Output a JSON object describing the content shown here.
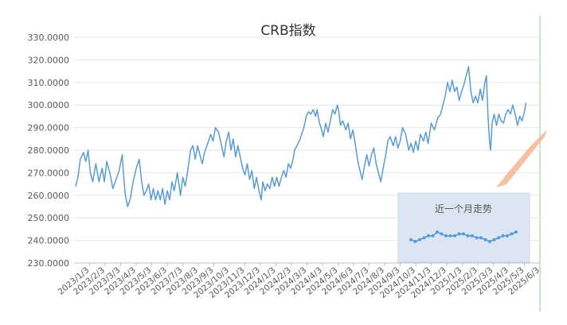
{
  "chart_data": [
    {
      "type": "line",
      "title": "CRB指数",
      "xlabel": "",
      "ylabel": "",
      "ylim": [
        230,
        330
      ],
      "y_ticks": [
        "330.0000",
        "320.0000",
        "310.0000",
        "300.0000",
        "290.0000",
        "280.0000",
        "270.0000",
        "260.0000",
        "250.0000",
        "240.0000",
        "230.0000"
      ],
      "x_ticks": [
        "2023/1/3",
        "2023/2/3",
        "2023/3/3",
        "2023/4/3",
        "2023/5/3",
        "2023/6/3",
        "2023/7/3",
        "2023/8/3",
        "2023/9/3",
        "2023/10/3",
        "2023/11/3",
        "2023/12/3",
        "2024/1/3",
        "2024/2/3",
        "2024/3/3",
        "2024/4/3",
        "2024/5/3",
        "2024/6/3",
        "2024/7/3",
        "2024/8/3",
        "2024/9/3",
        "2024/10/3",
        "2024/11/3",
        "2024/12/3",
        "2025/1/3",
        "2025/2/3",
        "2025/3/3",
        "2025/4/3",
        "2025/5/3",
        "2025/6/3"
      ],
      "grid": true,
      "line_color": "#5b9bd5",
      "series": [
        {
          "values": [
            [
              0,
              264
            ],
            [
              0.15,
              268
            ],
            [
              0.3,
              276
            ],
            [
              0.5,
              279
            ],
            [
              0.65,
              275
            ],
            [
              0.8,
              280
            ],
            [
              0.95,
              270
            ],
            [
              1.1,
              266
            ],
            [
              1.3,
              274
            ],
            [
              1.5,
              266
            ],
            [
              1.7,
              272
            ],
            [
              1.85,
              266
            ],
            [
              2.0,
              275
            ],
            [
              2.2,
              270
            ],
            [
              2.4,
              263
            ],
            [
              2.6,
              267
            ],
            [
              2.8,
              271
            ],
            [
              3.0,
              278
            ],
            [
              3.1,
              268
            ],
            [
              3.2,
              260
            ],
            [
              3.35,
              255
            ],
            [
              3.5,
              258
            ],
            [
              3.7,
              266
            ],
            [
              3.9,
              272
            ],
            [
              4.1,
              276
            ],
            [
              4.25,
              266
            ],
            [
              4.4,
              260
            ],
            [
              4.55,
              262
            ],
            [
              4.7,
              265
            ],
            [
              4.85,
              258
            ],
            [
              5.0,
              263
            ],
            [
              5.15,
              258
            ],
            [
              5.3,
              262
            ],
            [
              5.45,
              258
            ],
            [
              5.6,
              263
            ],
            [
              5.75,
              256
            ],
            [
              5.9,
              262
            ],
            [
              6.05,
              258
            ],
            [
              6.2,
              266
            ],
            [
              6.35,
              262
            ],
            [
              6.55,
              270
            ],
            [
              6.75,
              260
            ],
            [
              6.9,
              268
            ],
            [
              7.05,
              264
            ],
            [
              7.2,
              270
            ],
            [
              7.4,
              280
            ],
            [
              7.55,
              282
            ],
            [
              7.7,
              276
            ],
            [
              7.85,
              282
            ],
            [
              8.0,
              278
            ],
            [
              8.15,
              274
            ],
            [
              8.3,
              279
            ],
            [
              8.5,
              283
            ],
            [
              8.7,
              287
            ],
            [
              8.85,
              284
            ],
            [
              9.0,
              290
            ],
            [
              9.2,
              288
            ],
            [
              9.4,
              282
            ],
            [
              9.55,
              277
            ],
            [
              9.7,
              284
            ],
            [
              9.85,
              288
            ],
            [
              10.0,
              280
            ],
            [
              10.15,
              285
            ],
            [
              10.3,
              277
            ],
            [
              10.45,
              282
            ],
            [
              10.6,
              277
            ],
            [
              10.75,
              272
            ],
            [
              10.9,
              269
            ],
            [
              11.05,
              274
            ],
            [
              11.2,
              267
            ],
            [
              11.35,
              271
            ],
            [
              11.5,
              263
            ],
            [
              11.65,
              268
            ],
            [
              11.8,
              262
            ],
            [
              11.95,
              258
            ],
            [
              12.05,
              266
            ],
            [
              12.2,
              262
            ],
            [
              12.35,
              265
            ],
            [
              12.5,
              263
            ],
            [
              12.65,
              268
            ],
            [
              12.8,
              264
            ],
            [
              12.95,
              268
            ],
            [
              13.1,
              264
            ],
            [
              13.25,
              268
            ],
            [
              13.4,
              271
            ],
            [
              13.55,
              268
            ],
            [
              13.7,
              274
            ],
            [
              13.85,
              272
            ],
            [
              14.0,
              276
            ],
            [
              14.1,
              280
            ],
            [
              14.25,
              282
            ],
            [
              14.4,
              284
            ],
            [
              14.55,
              287
            ],
            [
              14.7,
              290
            ],
            [
              14.85,
              295
            ],
            [
              15.0,
              297
            ],
            [
              15.15,
              296
            ],
            [
              15.3,
              298
            ],
            [
              15.45,
              295
            ],
            [
              15.55,
              298
            ],
            [
              15.7,
              292
            ],
            [
              15.8,
              290
            ],
            [
              15.95,
              286
            ],
            [
              16.1,
              292
            ],
            [
              16.25,
              288
            ],
            [
              16.4,
              293
            ],
            [
              16.55,
              298
            ],
            [
              16.7,
              296
            ],
            [
              16.85,
              300
            ],
            [
              16.95,
              297
            ],
            [
              17.05,
              291
            ],
            [
              17.2,
              293
            ],
            [
              17.4,
              289
            ],
            [
              17.55,
              292
            ],
            [
              17.7,
              285
            ],
            [
              17.85,
              289
            ],
            [
              18.0,
              283
            ],
            [
              18.15,
              276
            ],
            [
              18.3,
              271
            ],
            [
              18.45,
              267
            ],
            [
              18.6,
              273
            ],
            [
              18.75,
              278
            ],
            [
              18.9,
              273
            ],
            [
              19.05,
              278
            ],
            [
              19.2,
              281
            ],
            [
              19.35,
              274
            ],
            [
              19.5,
              270
            ],
            [
              19.65,
              266
            ],
            [
              19.8,
              272
            ],
            [
              19.95,
              277
            ],
            [
              20.1,
              284
            ],
            [
              20.25,
              286
            ],
            [
              20.45,
              282
            ],
            [
              20.6,
              286
            ],
            [
              20.75,
              281
            ],
            [
              20.9,
              284
            ],
            [
              21.05,
              290
            ],
            [
              21.25,
              287
            ],
            [
              21.45,
              280
            ],
            [
              21.6,
              283
            ],
            [
              21.75,
              279
            ],
            [
              21.9,
              284
            ],
            [
              22.05,
              280
            ],
            [
              22.2,
              287
            ],
            [
              22.4,
              284
            ],
            [
              22.55,
              288
            ],
            [
              22.7,
              283
            ],
            [
              22.9,
              292
            ],
            [
              23.1,
              289
            ],
            [
              23.3,
              294
            ],
            [
              23.5,
              296
            ],
            [
              23.65,
              300
            ],
            [
              23.8,
              304
            ],
            [
              23.95,
              310
            ],
            [
              24.1,
              306
            ],
            [
              24.25,
              311
            ],
            [
              24.4,
              306
            ],
            [
              24.55,
              308
            ],
            [
              24.7,
              302
            ],
            [
              24.85,
              306
            ],
            [
              25.0,
              309
            ],
            [
              25.15,
              313
            ],
            [
              25.3,
              317
            ],
            [
              25.45,
              306
            ],
            [
              25.6,
              301
            ],
            [
              25.75,
              304
            ],
            [
              25.9,
              301
            ],
            [
              26.05,
              307
            ],
            [
              26.2,
              302
            ],
            [
              26.35,
              310
            ],
            [
              26.45,
              313
            ],
            [
              26.55,
              296
            ],
            [
              26.65,
              284
            ],
            [
              26.72,
              280
            ],
            [
              26.82,
              292
            ],
            [
              26.95,
              296
            ],
            [
              27.1,
              291
            ],
            [
              27.25,
              296
            ],
            [
              27.4,
              293
            ],
            [
              27.55,
              292
            ],
            [
              27.7,
              296
            ],
            [
              27.85,
              298
            ],
            [
              28.0,
              296
            ],
            [
              28.15,
              300
            ],
            [
              28.3,
              296
            ],
            [
              28.45,
              291
            ],
            [
              28.6,
              295
            ],
            [
              28.75,
              293
            ],
            [
              28.9,
              297
            ],
            [
              29.0,
              301
            ]
          ]
        }
      ]
    },
    {
      "type": "line",
      "title": "近一个月走势",
      "xlabel": "",
      "ylabel": "",
      "grid": false,
      "panel_color": "#dce6f2",
      "series": [
        {
          "values": [
            240,
            239,
            240,
            241,
            242,
            242,
            244,
            243,
            242,
            242,
            242,
            243,
            243,
            242,
            242,
            241,
            241,
            240,
            239,
            240,
            241,
            242,
            242,
            243,
            244
          ]
        }
      ]
    }
  ]
}
